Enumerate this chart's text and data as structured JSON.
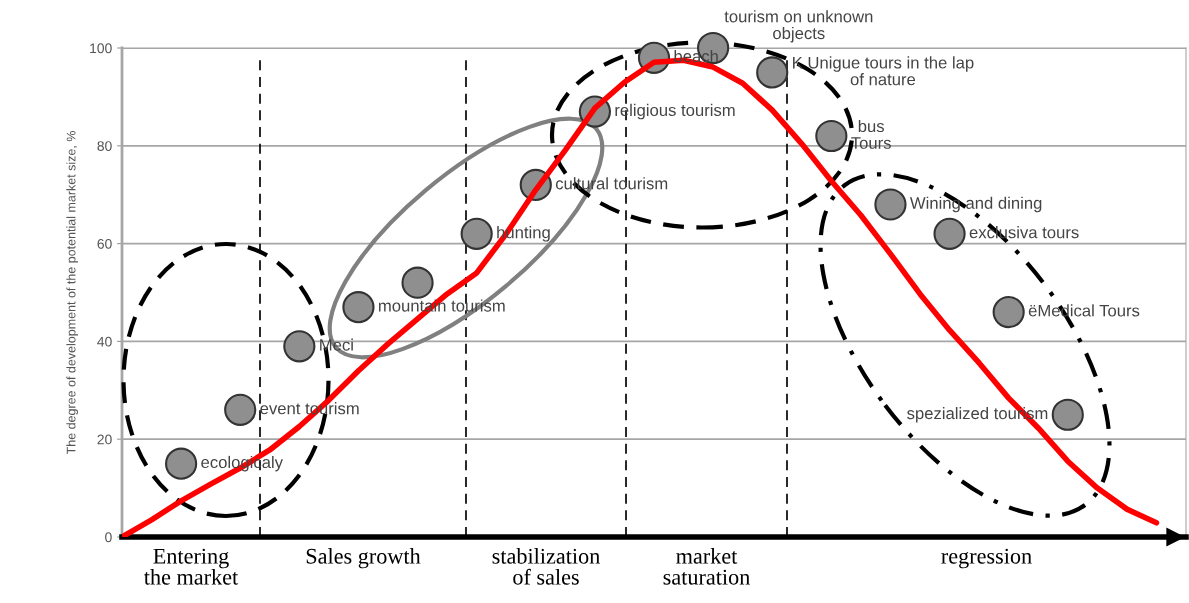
{
  "chart_data": {
    "type": "scatter",
    "ylabel": "The degree of development of the potential market size, %",
    "categories": [
      null,
      null,
      null,
      null,
      null,
      null,
      null,
      null,
      null,
      null,
      null,
      null,
      null,
      null,
      null,
      null,
      null,
      null,
      null,
      null,
      null,
      null,
      null,
      null,
      null,
      null,
      null,
      null,
      null,
      null,
      null,
      null,
      null,
      null,
      null,
      null,
      null
    ],
    "ylim": [
      0,
      100
    ],
    "yticks": [
      0,
      20,
      40,
      60,
      80,
      100
    ],
    "grid": "y",
    "series": [
      {
        "type": "line",
        "color": "#ff0000",
        "line_style": "solid",
        "values": [
          0,
          3.5,
          7.4,
          10.8,
          14.1,
          17.8,
          22.6,
          28,
          34,
          39.5,
          44.6,
          49.7,
          54,
          62,
          71,
          79.1,
          87.7,
          93,
          97.1,
          97.5,
          96.1,
          92.8,
          87.3,
          80.4,
          72.8,
          65.8,
          57.9,
          49.7,
          42.3,
          35.6,
          28.4,
          22.3,
          15.5,
          10,
          5.7,
          2.9,
          null
        ]
      },
      {
        "color": "#8f8f8f",
        "marker": "circle",
        "values": [
          null,
          null,
          15,
          null,
          26,
          null,
          39,
          null,
          47,
          null,
          52,
          null,
          62,
          null,
          72,
          null,
          87,
          null,
          98,
          null,
          100,
          null,
          95,
          null,
          82,
          null,
          68,
          null,
          62,
          null,
          46,
          null,
          25,
          null,
          null,
          null,
          null
        ],
        "value_labels": [
          null,
          null,
          "ecologicaly",
          null,
          "event tourism",
          null,
          "Meci",
          null,
          "mountain tourism",
          null,
          null,
          null,
          "hunting",
          null,
          "cultural tourism",
          null,
          "religious tourism",
          null,
          "beach",
          null,
          "tourism on unknown\nobjects",
          null,
          "K Unigue tours in the lap\nof nature",
          null,
          "bus\nTours",
          null,
          "Wining and dining",
          null,
          "exclusiva tours",
          null,
          "ёMedical Tours",
          null,
          "spezialized tourism",
          null,
          null,
          null,
          null
        ]
      }
    ],
    "annotations": [
      "Entering\nthe market",
      "Sales growth",
      "stabilization\nof sales",
      "market\nsaturation",
      "regression"
    ]
  }
}
